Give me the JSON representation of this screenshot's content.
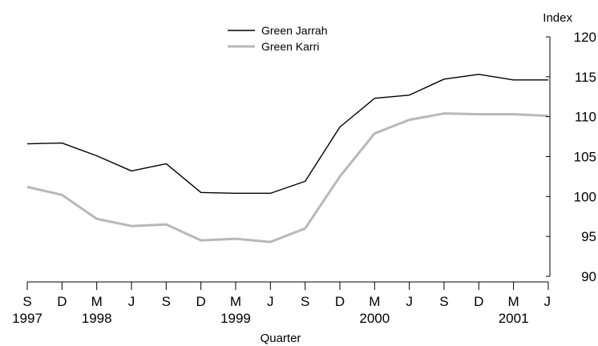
{
  "chart_data": {
    "type": "line",
    "categories": [
      "S",
      "D",
      "M",
      "J",
      "S",
      "D",
      "M",
      "J",
      "S",
      "D",
      "M",
      "J",
      "S",
      "D",
      "M",
      "J"
    ],
    "years": [
      {
        "label": "1997",
        "index": 0
      },
      {
        "label": "1998",
        "index": 2
      },
      {
        "label": "1999",
        "index": 6
      },
      {
        "label": "2000",
        "index": 10
      },
      {
        "label": "2001",
        "index": 14
      }
    ],
    "xlabel": "Quarter",
    "ylabel": "Index",
    "ylim": [
      90,
      120
    ],
    "yticks": [
      90,
      95,
      100,
      105,
      110,
      115,
      120
    ],
    "legend_position": "top-left",
    "series": [
      {
        "name": "Green Jarrah",
        "color": "#000000",
        "values": [
          106.6,
          106.7,
          105.1,
          103.2,
          104.1,
          100.5,
          100.4,
          100.4,
          101.9,
          108.7,
          112.3,
          112.7,
          114.7,
          115.3,
          114.6,
          114.6
        ]
      },
      {
        "name": "Green Karri",
        "color": "#b8b8b8",
        "values": [
          101.2,
          100.2,
          97.2,
          96.3,
          96.5,
          94.5,
          94.7,
          94.3,
          96.0,
          102.5,
          107.9,
          109.6,
          110.4,
          110.3,
          110.3,
          110.1
        ]
      }
    ]
  }
}
